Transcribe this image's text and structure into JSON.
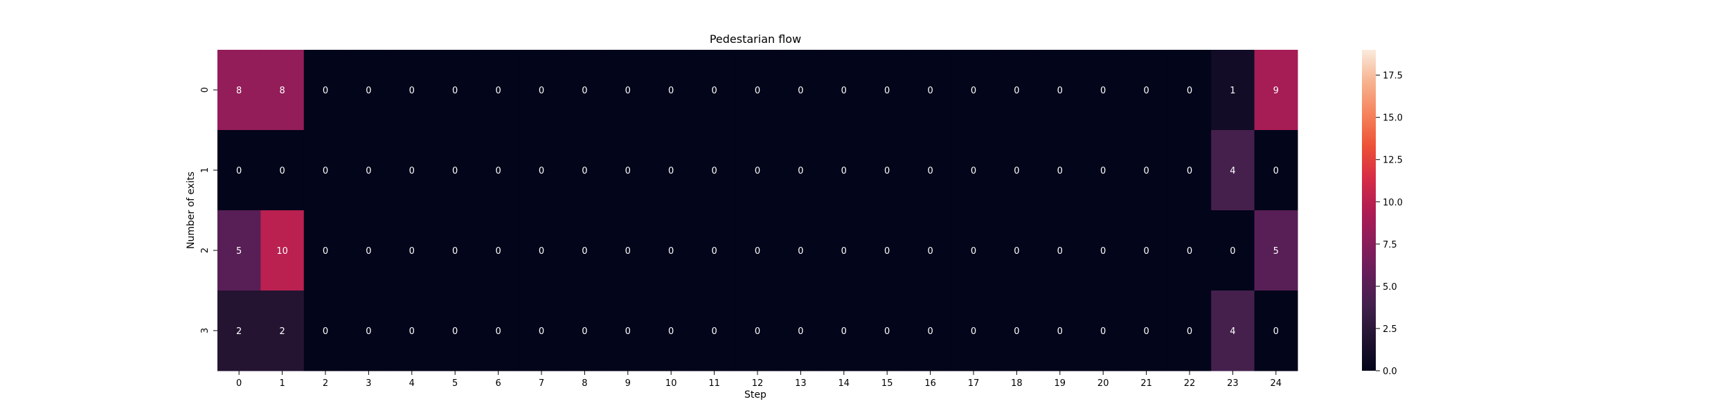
{
  "chart_data": {
    "type": "heatmap",
    "title": "Pedestarian flow",
    "xlabel": "Step",
    "ylabel": "Number of exits",
    "x_categories": [
      "0",
      "1",
      "2",
      "3",
      "4",
      "5",
      "6",
      "7",
      "8",
      "9",
      "10",
      "11",
      "12",
      "13",
      "14",
      "15",
      "16",
      "17",
      "18",
      "19",
      "20",
      "21",
      "22",
      "23",
      "24"
    ],
    "y_categories": [
      "0",
      "1",
      "2",
      "3"
    ],
    "values": [
      [
        8,
        8,
        0,
        0,
        0,
        0,
        0,
        0,
        0,
        0,
        0,
        0,
        0,
        0,
        0,
        0,
        0,
        0,
        0,
        0,
        0,
        0,
        0,
        1,
        9
      ],
      [
        0,
        0,
        0,
        0,
        0,
        0,
        0,
        0,
        0,
        0,
        0,
        0,
        0,
        0,
        0,
        0,
        0,
        0,
        0,
        0,
        0,
        0,
        0,
        4,
        0
      ],
      [
        5,
        10,
        0,
        0,
        0,
        0,
        0,
        0,
        0,
        0,
        0,
        0,
        0,
        0,
        0,
        0,
        0,
        0,
        0,
        0,
        0,
        0,
        0,
        0,
        5
      ],
      [
        2,
        2,
        0,
        0,
        0,
        0,
        0,
        0,
        0,
        0,
        0,
        0,
        0,
        0,
        0,
        0,
        0,
        0,
        0,
        0,
        0,
        0,
        0,
        4,
        0
      ]
    ],
    "colorbar": {
      "range": [
        0,
        19
      ],
      "ticks": [
        0.0,
        2.5,
        5.0,
        7.5,
        10.0,
        12.5,
        15.0,
        17.5
      ],
      "tick_labels": [
        "0.0",
        "2.5",
        "5.0",
        "7.5",
        "10.0",
        "12.5",
        "15.0",
        "17.5"
      ],
      "colormap": "rocket"
    },
    "annotations": "cell values shown"
  }
}
